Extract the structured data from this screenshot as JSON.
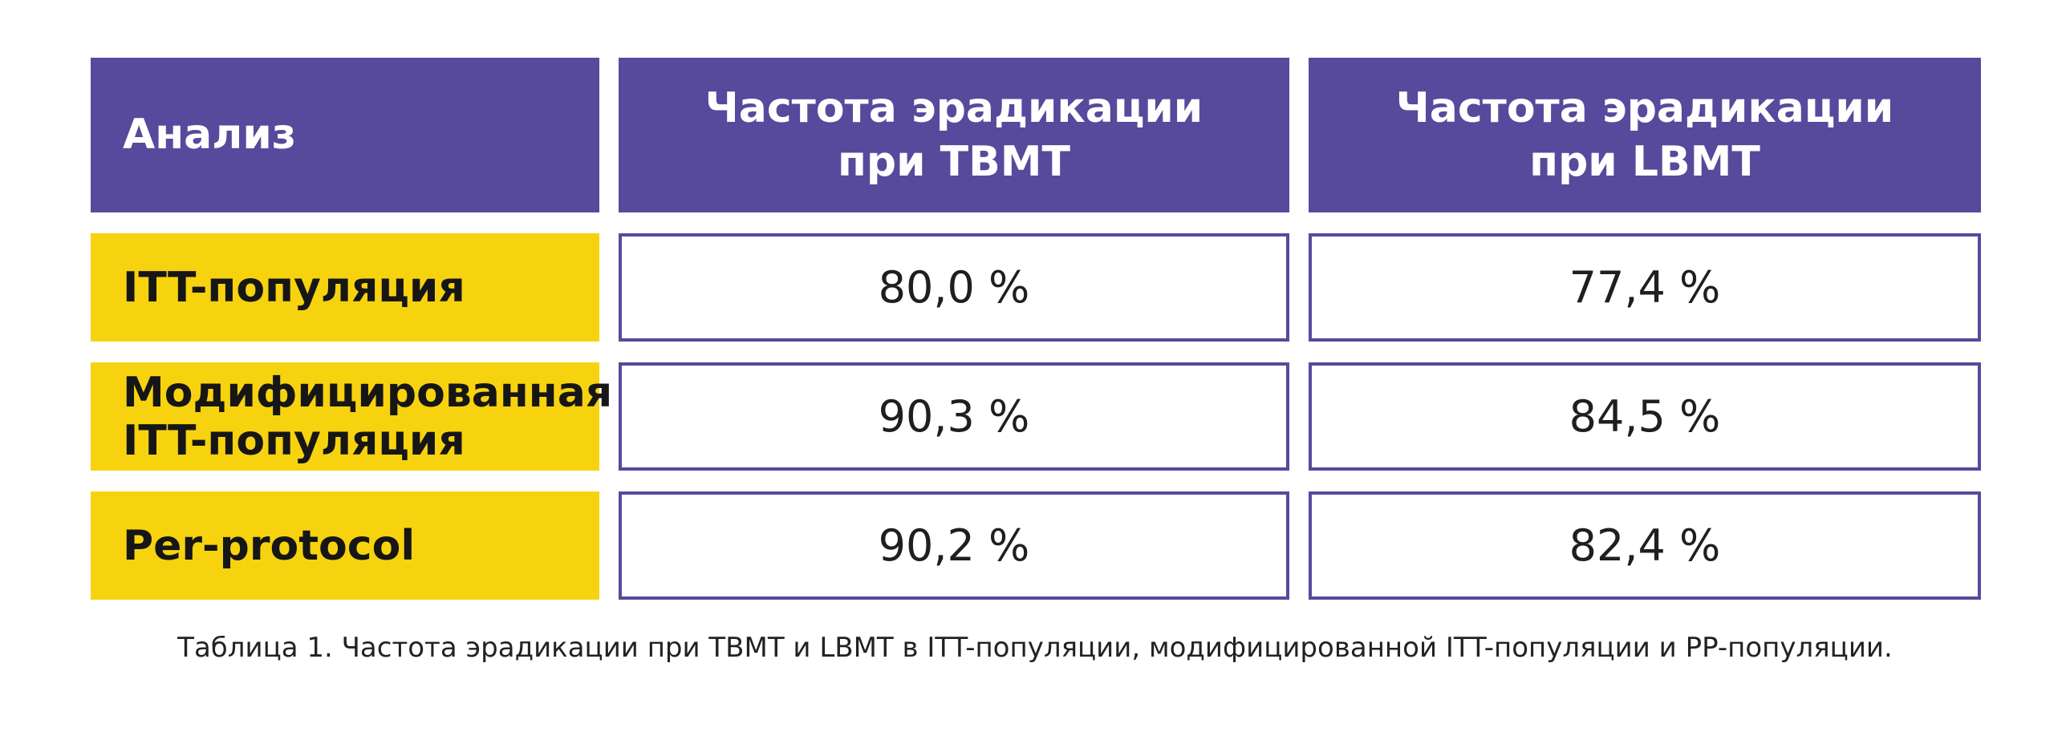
{
  "table": {
    "columns": [
      "Анализ",
      "Частота эрадикации\nпри TBMT",
      "Частота эрадикации\nпри LBMT"
    ],
    "rows": [
      {
        "label": "ITT-популяция",
        "tbmt": "80,0 %",
        "lbmt": "77,4 %"
      },
      {
        "label": "Модифицированная\nITT-популяция",
        "tbmt": "90,3 %",
        "lbmt": "84,5 %"
      },
      {
        "label": "Per-protocol",
        "tbmt": "90,2 %",
        "lbmt": "82,4 %"
      }
    ]
  },
  "caption": "Таблица 1. Частота эрадикации при TBMT и LBMT в ITT-популяции, модифицированной ITT-популяции и PP-популяции.",
  "colors": {
    "header_bg": "#574a9c",
    "label_bg": "#f7d30f",
    "border": "#574a9c"
  }
}
